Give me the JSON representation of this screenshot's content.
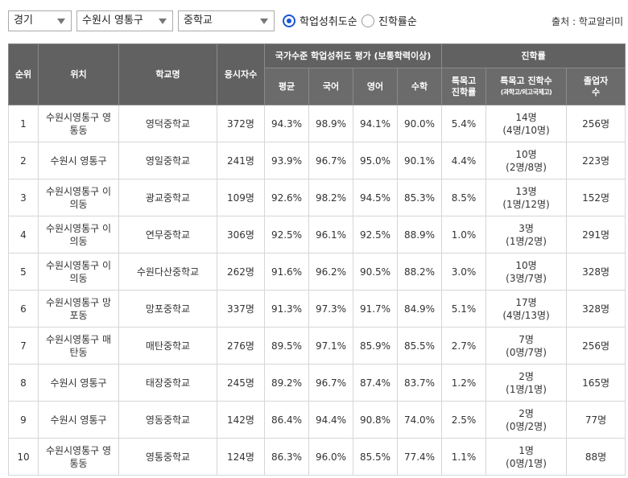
{
  "filters": {
    "region": "경기",
    "district": "수원시 영통구",
    "school_type": "중학교"
  },
  "sort_options": [
    {
      "label": "학업성취도순",
      "selected": true
    },
    {
      "label": "진학률순",
      "selected": false
    }
  ],
  "source": "출처 : 학교알리미",
  "headers": {
    "rank": "순위",
    "location": "위치",
    "school": "학교명",
    "test_takers": "응시자수",
    "achievement_group": "국가수준 학업성취도 평가 (보통학력이상)",
    "avg": "평균",
    "korean": "국어",
    "english": "영어",
    "math": "수학",
    "advancement_group": "진학률",
    "special_rate_l1": "특목고",
    "special_rate_l2": "진학률",
    "special_count_l1": "특목고 진학수",
    "special_count_l2": "(과학고/외고국제고)",
    "graduates_l1": "졸업자",
    "graduates_l2": "수"
  },
  "rows": [
    {
      "rank": "1",
      "loc1": "수원시영통구 영",
      "loc2": "통동",
      "school": "영덕중학교",
      "takers": "372명",
      "avg": "94.3%",
      "kor": "98.9%",
      "eng": "94.1%",
      "math": "90.0%",
      "srate": "5.4%",
      "scount1": "14명",
      "scount2": "(4명/10명)",
      "grads": "256명"
    },
    {
      "rank": "2",
      "loc1": "수원시 영통구",
      "loc2": "",
      "school": "영일중학교",
      "takers": "241명",
      "avg": "93.9%",
      "kor": "96.7%",
      "eng": "95.0%",
      "math": "90.1%",
      "srate": "4.4%",
      "scount1": "10명",
      "scount2": "(2명/8명)",
      "grads": "223명"
    },
    {
      "rank": "3",
      "loc1": "수원시영통구 이",
      "loc2": "의동",
      "school": "광교중학교",
      "takers": "109명",
      "avg": "92.6%",
      "kor": "98.2%",
      "eng": "94.5%",
      "math": "85.3%",
      "srate": "8.5%",
      "scount1": "13명",
      "scount2": "(1명/12명)",
      "grads": "152명"
    },
    {
      "rank": "4",
      "loc1": "수원시영통구 이",
      "loc2": "의동",
      "school": "연무중학교",
      "takers": "306명",
      "avg": "92.5%",
      "kor": "96.1%",
      "eng": "92.5%",
      "math": "88.9%",
      "srate": "1.0%",
      "scount1": "3명",
      "scount2": "(1명/2명)",
      "grads": "291명"
    },
    {
      "rank": "5",
      "loc1": "수원시영통구 이",
      "loc2": "의동",
      "school": "수원다산중학교",
      "takers": "262명",
      "avg": "91.6%",
      "kor": "96.2%",
      "eng": "90.5%",
      "math": "88.2%",
      "srate": "3.0%",
      "scount1": "10명",
      "scount2": "(3명/7명)",
      "grads": "328명"
    },
    {
      "rank": "6",
      "loc1": "수원시영통구 망",
      "loc2": "포동",
      "school": "망포중학교",
      "takers": "337명",
      "avg": "91.3%",
      "kor": "97.3%",
      "eng": "91.7%",
      "math": "84.9%",
      "srate": "5.1%",
      "scount1": "17명",
      "scount2": "(4명/13명)",
      "grads": "328명"
    },
    {
      "rank": "7",
      "loc1": "수원시영통구 매",
      "loc2": "탄동",
      "school": "매탄중학교",
      "takers": "276명",
      "avg": "89.5%",
      "kor": "97.1%",
      "eng": "85.9%",
      "math": "85.5%",
      "srate": "2.7%",
      "scount1": "7명",
      "scount2": "(0명/7명)",
      "grads": "256명"
    },
    {
      "rank": "8",
      "loc1": "수원시 영통구",
      "loc2": "",
      "school": "태장중학교",
      "takers": "245명",
      "avg": "89.2%",
      "kor": "96.7%",
      "eng": "87.4%",
      "math": "83.7%",
      "srate": "1.2%",
      "scount1": "2명",
      "scount2": "(1명/1명)",
      "grads": "165명"
    },
    {
      "rank": "9",
      "loc1": "수원시 영통구",
      "loc2": "",
      "school": "영동중학교",
      "takers": "142명",
      "avg": "86.4%",
      "kor": "94.4%",
      "eng": "90.8%",
      "math": "74.0%",
      "srate": "2.5%",
      "scount1": "2명",
      "scount2": "(0명/2명)",
      "grads": "77명"
    },
    {
      "rank": "10",
      "loc1": "수원시영통구 영",
      "loc2": "통동",
      "school": "영통중학교",
      "takers": "124명",
      "avg": "86.3%",
      "kor": "96.0%",
      "eng": "85.5%",
      "math": "77.4%",
      "srate": "1.1%",
      "scount1": "1명",
      "scount2": "(0명/1명)",
      "grads": "88명"
    }
  ]
}
